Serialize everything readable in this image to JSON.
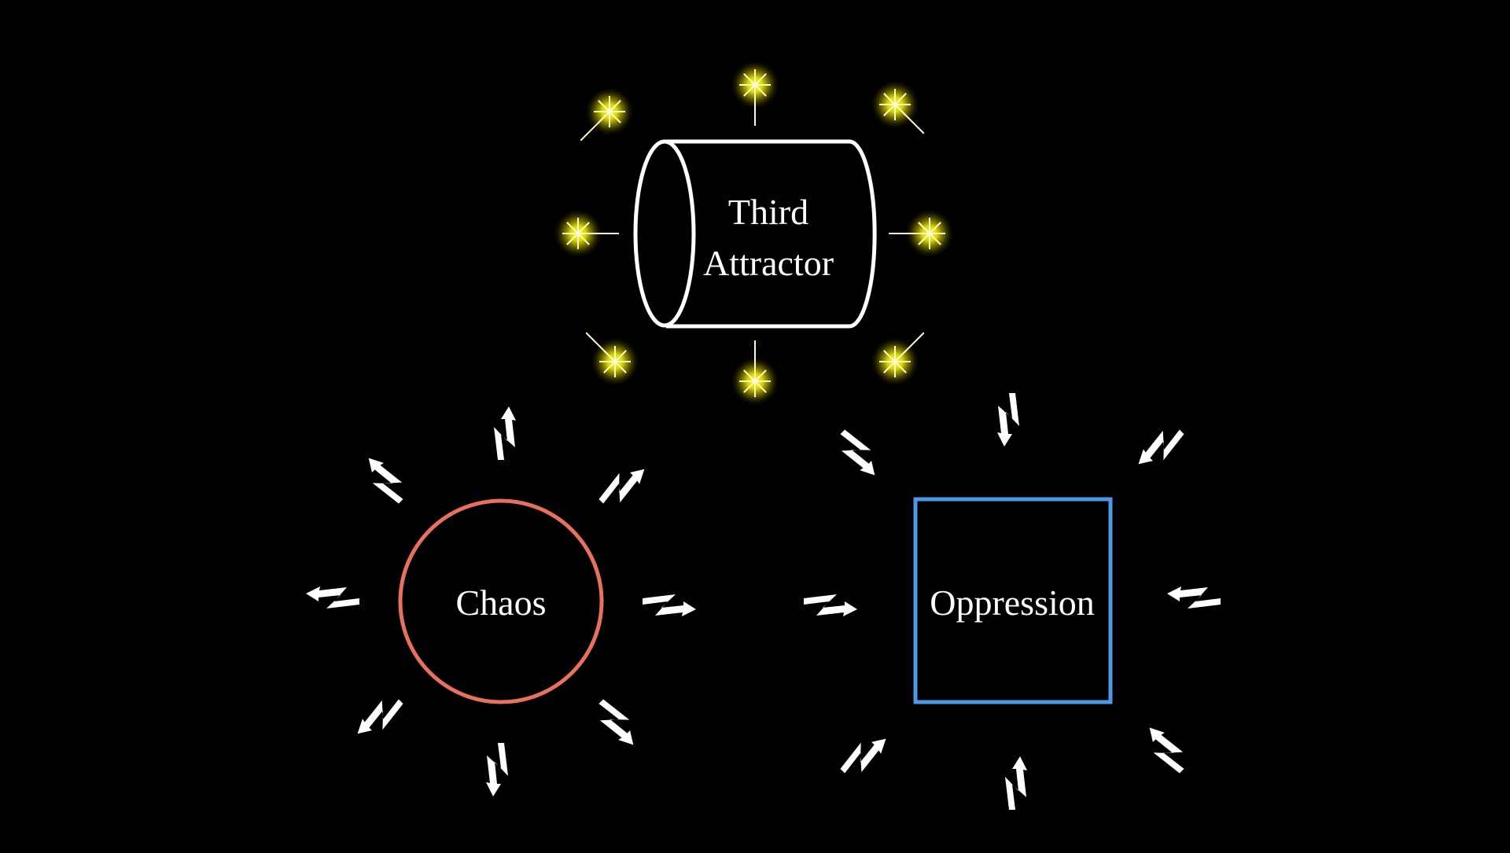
{
  "colors": {
    "background": "#000000",
    "cylinder_stroke": "#ffffff",
    "star_glow": "#ffff00",
    "circle_stroke": "#e8705f",
    "square_stroke": "#4a98e8",
    "bolt_fill": "#ffffff",
    "text": "#ffffff"
  },
  "nodes": {
    "third_attractor": {
      "line1": "Third",
      "line2": "Attractor",
      "decoration": "star-icon"
    },
    "chaos": {
      "label": "Chaos",
      "decoration": "lightning-outward-icon"
    },
    "oppression": {
      "label": "Oppression",
      "decoration": "lightning-inward-icon"
    }
  }
}
